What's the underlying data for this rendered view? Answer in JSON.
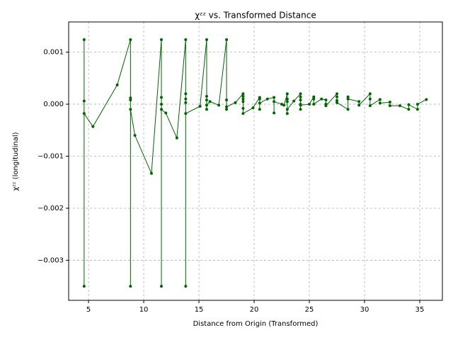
{
  "chart_data": {
    "type": "line",
    "title": "χᶻᶻ vs. Transformed Distance",
    "x_label": "Distance from Origin (Transformed)",
    "y_label": "χᶻᶻ (longitudinal)",
    "xlim": [
      3.2,
      37.05
    ],
    "ylim": [
      -0.00377,
      0.00158
    ],
    "xticks": [
      5,
      10,
      15,
      20,
      25,
      30,
      35
    ],
    "yticks": [
      {
        "value": -0.003,
        "label": "−0.003"
      },
      {
        "value": -0.002,
        "label": "−0.002"
      },
      {
        "value": -0.001,
        "label": "−0.001"
      },
      {
        "value": 0,
        "label": "0.000"
      },
      {
        "value": 0.001,
        "label": "0.001"
      }
    ],
    "grid": true,
    "series": [
      {
        "color": "#006400",
        "x": [
          4.6,
          4.6,
          4.6,
          4.6,
          5.4,
          7.6,
          8.8,
          8.8,
          8.8,
          8.8,
          8.8,
          9.2,
          10.7,
          11.6,
          11.6,
          11.6,
          11.6,
          11.6,
          12.0,
          13.0,
          13.8,
          13.8,
          13.8,
          13.8,
          13.8,
          13.8,
          15.1,
          15.7,
          15.7,
          15.7,
          15.7,
          15.7,
          16.0,
          16.8,
          17.5,
          17.5,
          17.5,
          17.5,
          18.3,
          19.0,
          19.0,
          19.0,
          19.0,
          19.0,
          19.0,
          19.9,
          20.5,
          20.5,
          20.5,
          20.5,
          21.2,
          21.8,
          21.8,
          21.8,
          22.5,
          22.7,
          23.0,
          23.0,
          23.0,
          23.0,
          23.0,
          23.6,
          24.2,
          24.2,
          24.2,
          24.2,
          24.2,
          24.2,
          25.0,
          25.4,
          25.4,
          25.4,
          26.1,
          26.5,
          26.5,
          26.5,
          27.5,
          27.5,
          27.5,
          27.5,
          28.5,
          28.5,
          28.5,
          29.5,
          29.5,
          30.5,
          30.5,
          30.5,
          31.4,
          31.4,
          32.3,
          32.3,
          33.2,
          34.0,
          34.0,
          34.8,
          34.8,
          35.6
        ],
        "values": [
          0.00124,
          6e-05,
          -0.0035,
          -0.00018,
          -0.00043,
          0.00037,
          0.00124,
          0.00012,
          8e-05,
          -0.0035,
          -0.0001,
          -0.0006,
          -0.00133,
          0.00124,
          0.00013,
          0.0,
          -0.0035,
          -0.0001,
          -0.00017,
          -0.00065,
          0.00124,
          0.0002,
          0.0001,
          3e-05,
          -0.0035,
          -0.00018,
          -4e-05,
          0.00124,
          0.00015,
          8e-05,
          -0.0001,
          -2e-05,
          5e-05,
          -2e-05,
          0.00124,
          8e-05,
          -0.0001,
          -5e-05,
          3e-05,
          0.0002,
          0.00015,
          0.0001,
          5e-05,
          -8e-05,
          -0.00018,
          -7e-05,
          0.00013,
          0.0001,
          -0.0001,
          2e-05,
          0.0001,
          0.00013,
          -0.00017,
          5e-05,
          0.0,
          -2e-05,
          0.0002,
          0.0001,
          5e-05,
          -0.00018,
          -0.0001,
          6e-05,
          0.0002,
          0.00014,
          8e-05,
          0.0,
          -0.0001,
          -2e-05,
          0.0,
          0.00014,
          0.0001,
          0.0,
          0.0001,
          8e-05,
          0.0,
          -3e-05,
          0.0002,
          0.00014,
          7e-05,
          3e-05,
          -0.0001,
          0.00014,
          0.0001,
          5e-05,
          -2e-05,
          0.0002,
          0.0001,
          -3e-05,
          9e-05,
          2e-05,
          4e-05,
          -3e-05,
          -3e-05,
          -0.0001,
          -1e-05,
          -0.0001,
          0.0,
          9e-05
        ]
      }
    ]
  }
}
